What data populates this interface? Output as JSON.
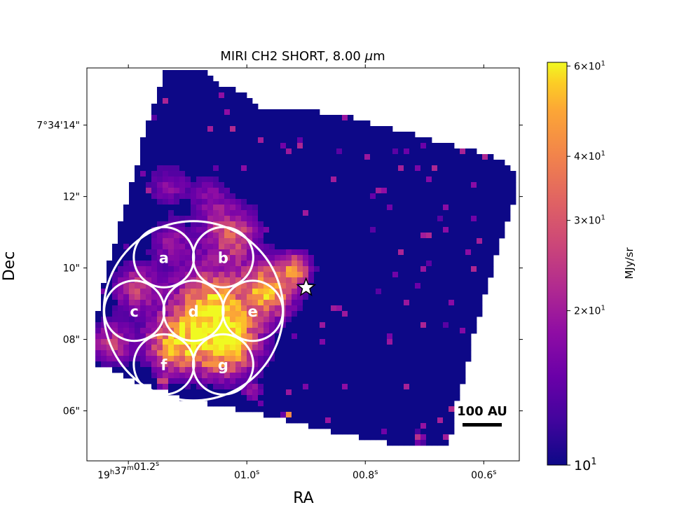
{
  "chart_data": {
    "type": "heatmap",
    "title": "MIRI CH2 SHORT, 8.00 μm",
    "title_main": "MIRI CH2 SHORT, 8.00 ",
    "title_unit": "m",
    "xlabel": "RA",
    "ylabel": "Dec",
    "x_ticks": [
      {
        "value": 1.2,
        "label": "19h37m01.2s",
        "parts": [
          "19",
          "h",
          "37",
          "m",
          "01.2",
          "s"
        ]
      },
      {
        "value": 1.0,
        "label": "01.0s",
        "parts": [
          "01.0",
          "s"
        ]
      },
      {
        "value": 0.8,
        "label": "00.8s",
        "parts": [
          "00.8",
          "s"
        ]
      },
      {
        "value": 0.6,
        "label": "00.6s",
        "parts": [
          "00.6",
          "s"
        ]
      }
    ],
    "x_range": [
      1.27,
      0.54
    ],
    "y_ticks": [
      {
        "value": 14,
        "label": "7°34'14\""
      },
      {
        "value": 12,
        "label": "12\""
      },
      {
        "value": 10,
        "label": "10\""
      },
      {
        "value": 8,
        "label": "08\""
      },
      {
        "value": 6,
        "label": "06\""
      }
    ],
    "y_range": [
      4.6,
      15.6
    ],
    "colorbar": {
      "label": "MJy/sr",
      "scale": "log",
      "colormap": "plasma",
      "range": [
        10,
        61
      ],
      "ticks": [
        {
          "value": 60,
          "mant": "6",
          "base": "10",
          "exp": "1"
        },
        {
          "value": 40,
          "mant": "4",
          "base": "10",
          "exp": "1"
        },
        {
          "value": 30,
          "mant": "3",
          "base": "10",
          "exp": "1"
        },
        {
          "value": 20,
          "mant": "2",
          "base": "10",
          "exp": "1"
        },
        {
          "value": 10,
          "mant": "",
          "base": "10",
          "exp": "1"
        }
      ]
    },
    "apertures": [
      {
        "label": "a",
        "ra": 1.14,
        "dec": 10.3
      },
      {
        "label": "b",
        "ra": 1.04,
        "dec": 10.3
      },
      {
        "label": "c",
        "ra": 1.19,
        "dec": 8.8
      },
      {
        "label": "d",
        "ra": 1.09,
        "dec": 8.8
      },
      {
        "label": "e",
        "ra": 0.99,
        "dec": 8.8
      },
      {
        "label": "f",
        "ra": 1.14,
        "dec": 7.3
      },
      {
        "label": "g",
        "ra": 1.04,
        "dec": 7.3
      }
    ],
    "outer_aperture": {
      "ra": 1.09,
      "dec": 8.8
    },
    "star": {
      "ra": 0.9,
      "dec": 9.45
    },
    "scale_bar": {
      "label": "100 AU"
    },
    "colors": {
      "background_map": "#0c0786",
      "annotation": "#ffffff"
    }
  }
}
